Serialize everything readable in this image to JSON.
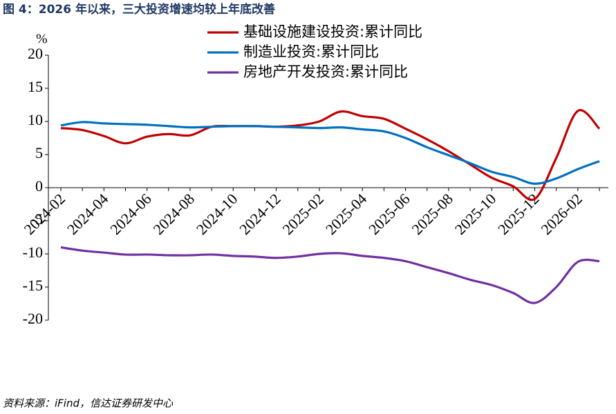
{
  "chart_data": {
    "type": "line",
    "title": "图 4：2026 年以来，三大投资增速均较上年底改善",
    "ylabel": "%",
    "source": "资料来源：iFind，信达证券研发中心",
    "categories": [
      "2024-02",
      null,
      "2024-04",
      null,
      "2024-06",
      null,
      "2024-08",
      null,
      "2024-10",
      null,
      "2024-12",
      null,
      "2025-02",
      null,
      "2025-04",
      null,
      "2025-06",
      null,
      "2025-08",
      null,
      "2025-10",
      null,
      "2025-12",
      null,
      "2026-02",
      null
    ],
    "series": [
      {
        "name": "基础设施建设投资:累计同比",
        "color": "#c00000",
        "values": [
          9.0,
          8.7,
          7.8,
          6.7,
          7.7,
          8.1,
          7.9,
          9.2,
          9.3,
          9.3,
          9.2,
          9.4,
          10.0,
          11.5,
          10.8,
          10.4,
          8.9,
          7.3,
          5.5,
          3.5,
          1.5,
          0.2,
          -1.7,
          4.5,
          11.6,
          8.9
        ]
      },
      {
        "name": "制造业投资:累计同比",
        "color": "#0070c0",
        "values": [
          9.4,
          9.9,
          9.7,
          9.6,
          9.5,
          9.3,
          9.1,
          9.2,
          9.3,
          9.3,
          9.2,
          9.1,
          9.0,
          9.1,
          8.8,
          8.5,
          7.5,
          6.1,
          4.9,
          3.7,
          2.4,
          1.6,
          0.6,
          1.4,
          2.8,
          4.0
        ]
      },
      {
        "name": "房地产开发投资:累计同比",
        "color": "#7030a0",
        "values": [
          -9.0,
          -9.5,
          -9.8,
          -10.1,
          -10.1,
          -10.2,
          -10.2,
          -10.1,
          -10.3,
          -10.4,
          -10.6,
          -10.4,
          -10.0,
          -9.9,
          -10.3,
          -10.6,
          -11.1,
          -12.0,
          -12.9,
          -13.9,
          -14.7,
          -15.9,
          -17.4,
          -15.0,
          -11.2,
          -11.1
        ]
      }
    ],
    "ylim": [
      -20,
      20
    ],
    "yticks": [
      -20,
      -15,
      -10,
      -5,
      0,
      5,
      10,
      15,
      20
    ],
    "grid": false,
    "legend": "top"
  }
}
